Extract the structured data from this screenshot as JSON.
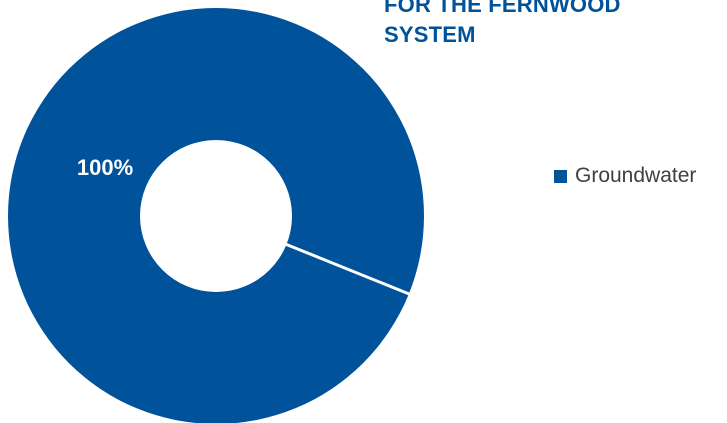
{
  "chart_data": {
    "type": "pie",
    "style": "donut",
    "title_lines": [
      "FOR THE FERNWOOD",
      "SYSTEM"
    ],
    "categories": [
      "Groundwater"
    ],
    "values": [
      100
    ],
    "data_labels": [
      "100%"
    ],
    "legend_position": "right",
    "colors": {
      "slice": "#00529b",
      "title": "#00529b",
      "legend_text": "#404040",
      "data_label": "#ffffff",
      "background": "#ffffff"
    }
  }
}
